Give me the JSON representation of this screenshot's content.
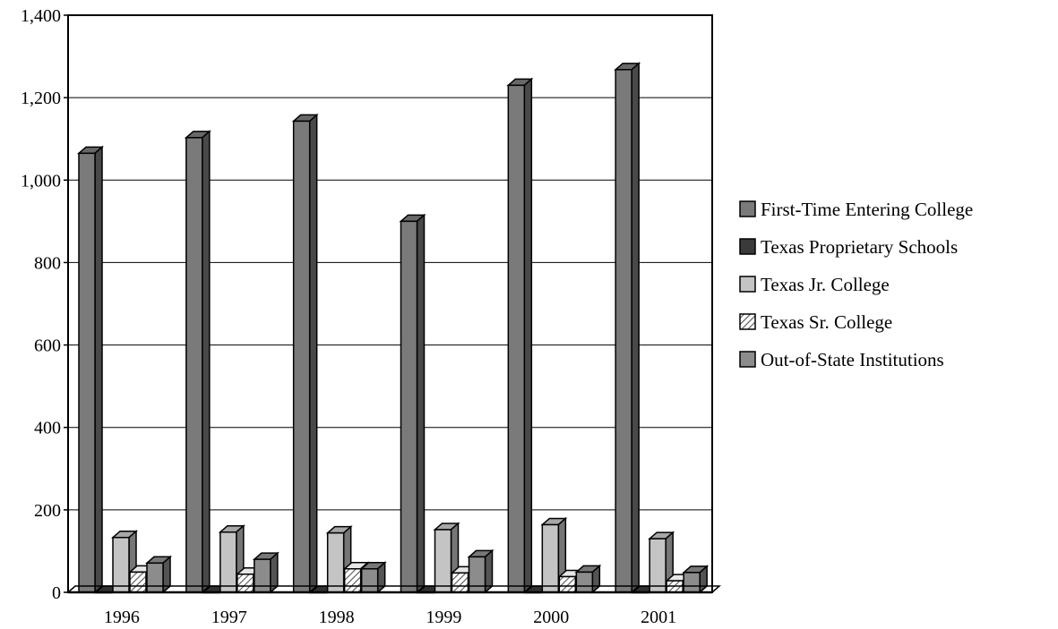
{
  "chart_data": {
    "type": "bar",
    "title": "",
    "xlabel": "",
    "ylabel": "",
    "ylim": [
      0,
      1400
    ],
    "yticks": [
      0,
      200,
      400,
      600,
      800,
      1000,
      1200,
      1400
    ],
    "ytick_labels": [
      "0",
      "200",
      "400",
      "600",
      "800",
      "1,000",
      "1,200",
      "1,400"
    ],
    "categories": [
      "1996",
      "1997",
      "1998",
      "1999",
      "2000",
      "2001"
    ],
    "grid": true,
    "legend_position": "right",
    "series": [
      {
        "name": "First-Time Entering College",
        "color": "#7a7a7a",
        "pattern": "solid",
        "values": [
          1065,
          1103,
          1143,
          900,
          1230,
          1268
        ]
      },
      {
        "name": "Texas Proprietary Schools",
        "color": "#3a3a3a",
        "pattern": "solid",
        "values": [
          0,
          0,
          0,
          0,
          0,
          0
        ]
      },
      {
        "name": "Texas Jr. College",
        "color": "#c4c4c4",
        "pattern": "solid",
        "values": [
          133,
          146,
          144,
          152,
          164,
          130
        ]
      },
      {
        "name": "Texas Sr. College",
        "color": "#ffffff",
        "pattern": "hatch",
        "values": [
          49,
          44,
          57,
          47,
          38,
          28
        ]
      },
      {
        "name": "Out-of-State Institutions",
        "color": "#8c8c8c",
        "pattern": "solid",
        "values": [
          71,
          80,
          57,
          86,
          49,
          48
        ]
      }
    ]
  }
}
